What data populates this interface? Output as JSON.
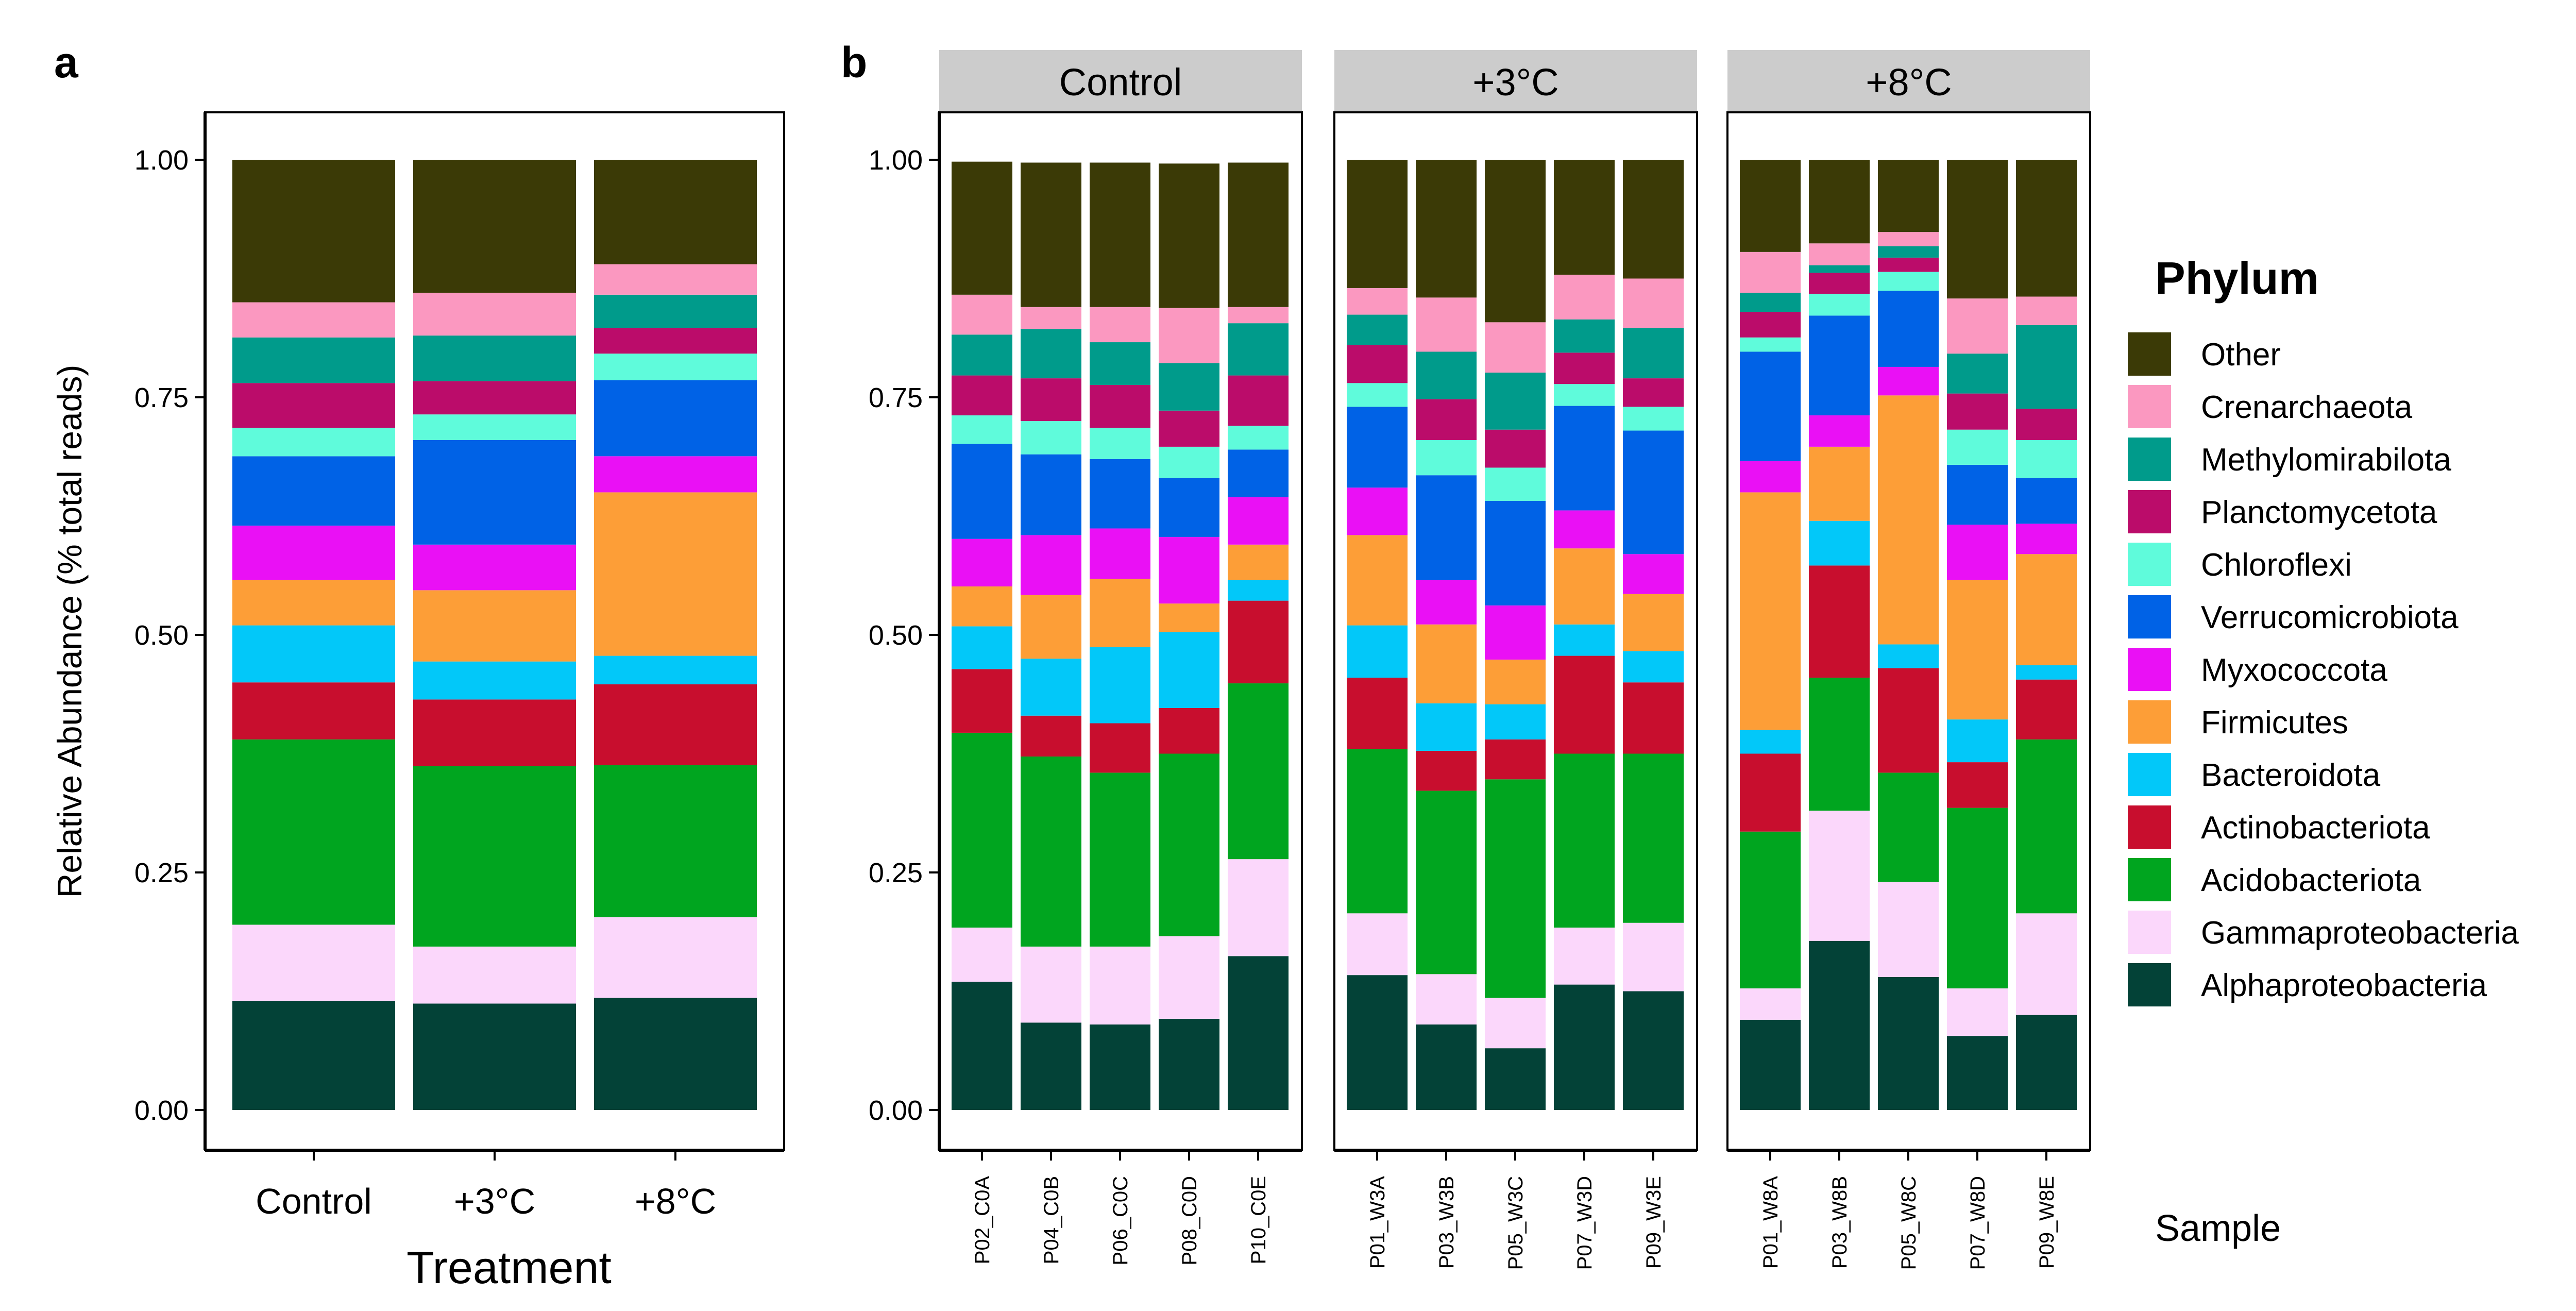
{
  "panels": {
    "a": "a",
    "b": "b"
  },
  "colors": {
    "Other": "#3b3a06",
    "Crenarchaeota": "#fb98c0",
    "Methylomirabilota": "#009b8b",
    "Planctomycetota": "#bb0c6a",
    "Chloroflexi": "#5ffbdb",
    "Verrucomicrobiota": "#0062e6",
    "Myxococcota": "#ea10f5",
    "Firmicutes": "#fd9e37",
    "Bacteroidota": "#02c8f9",
    "Actinobacteriota": "#c80e2e",
    "Acidobacteriota": "#00a51f",
    "Gammaproteobacteria": "#fbd7fb",
    "Alphaproteobacteria": "#034237"
  },
  "chart_data": [
    {
      "type": "bar",
      "stacked": true,
      "panel": "a",
      "xlabel": "Treatment",
      "ylabel": "Relative Abundance (% total reads)",
      "ylim": [
        0,
        1
      ],
      "yticks": [
        "0.00",
        "0.25",
        "0.50",
        "0.75",
        "1.00"
      ],
      "categories": [
        "Control",
        "+3°C",
        "+8°C"
      ],
      "series": [
        {
          "name": "Alphaproteobacteria",
          "values": [
            0.115,
            0.112,
            0.118
          ]
        },
        {
          "name": "Gammaproteobacteria",
          "values": [
            0.08,
            0.06,
            0.085
          ]
        },
        {
          "name": "Acidobacteriota",
          "values": [
            0.195,
            0.19,
            0.16
          ]
        },
        {
          "name": "Actinobacteriota",
          "values": [
            0.06,
            0.07,
            0.085
          ]
        },
        {
          "name": "Bacteroidota",
          "values": [
            0.06,
            0.04,
            0.03
          ]
        },
        {
          "name": "Firmicutes",
          "values": [
            0.048,
            0.075,
            0.172
          ]
        },
        {
          "name": "Myxococcota",
          "values": [
            0.057,
            0.048,
            0.038
          ]
        },
        {
          "name": "Verrucomicrobiota",
          "values": [
            0.073,
            0.11,
            0.08
          ]
        },
        {
          "name": "Chloroflexi",
          "values": [
            0.03,
            0.027,
            0.028
          ]
        },
        {
          "name": "Planctomycetota",
          "values": [
            0.047,
            0.035,
            0.027
          ]
        },
        {
          "name": "Methylomirabilota",
          "values": [
            0.048,
            0.048,
            0.035
          ]
        },
        {
          "name": "Crenarchaeota",
          "values": [
            0.037,
            0.045,
            0.032
          ]
        },
        {
          "name": "Other",
          "values": [
            0.15,
            0.14,
            0.11
          ]
        }
      ]
    },
    {
      "type": "bar",
      "stacked": true,
      "panel": "b",
      "xlabel": "Sample",
      "ylabel": "",
      "ylim": [
        0,
        1
      ],
      "yticks": [
        "0.00",
        "0.25",
        "0.50",
        "0.75",
        "1.00"
      ],
      "legend_title": "Phylum",
      "legend_position": "right",
      "legend_order": [
        "Other",
        "Crenarchaeota",
        "Methylomirabilota",
        "Planctomycetota",
        "Chloroflexi",
        "Verrucomicrobiota",
        "Myxococcota",
        "Firmicutes",
        "Bacteroidota",
        "Actinobacteriota",
        "Acidobacteriota",
        "Gammaproteobacteria",
        "Alphaproteobacteria"
      ],
      "facets": [
        {
          "label": "Control",
          "categories": [
            "P02_C0A",
            "P04_C0B",
            "P06_C0C",
            "P08_C0D",
            "P10_C0E"
          ],
          "series": [
            {
              "name": "Alphaproteobacteria",
              "values": [
                0.135,
                0.092,
                0.09,
                0.096,
                0.162
              ]
            },
            {
              "name": "Gammaproteobacteria",
              "values": [
                0.057,
                0.08,
                0.082,
                0.087,
                0.102
              ]
            },
            {
              "name": "Acidobacteriota",
              "values": [
                0.205,
                0.2,
                0.183,
                0.192,
                0.185
              ]
            },
            {
              "name": "Actinobacteriota",
              "values": [
                0.067,
                0.043,
                0.052,
                0.048,
                0.087
              ]
            },
            {
              "name": "Bacteroidota",
              "values": [
                0.045,
                0.06,
                0.08,
                0.08,
                0.022
              ]
            },
            {
              "name": "Firmicutes",
              "values": [
                0.042,
                0.067,
                0.072,
                0.03,
                0.037
              ]
            },
            {
              "name": "Myxococcota",
              "values": [
                0.05,
                0.063,
                0.053,
                0.07,
                0.05
              ]
            },
            {
              "name": "Verrucomicrobiota",
              "values": [
                0.1,
                0.085,
                0.073,
                0.062,
                0.05
              ]
            },
            {
              "name": "Chloroflexi",
              "values": [
                0.03,
                0.035,
                0.033,
                0.033,
                0.025
              ]
            },
            {
              "name": "Planctomycetota",
              "values": [
                0.042,
                0.045,
                0.045,
                0.038,
                0.053
              ]
            },
            {
              "name": "Methylomirabilota",
              "values": [
                0.043,
                0.052,
                0.045,
                0.05,
                0.055
              ]
            },
            {
              "name": "Crenarchaeota",
              "values": [
                0.042,
                0.023,
                0.037,
                0.058,
                0.017
              ]
            },
            {
              "name": "Other",
              "values": [
                0.14,
                0.152,
                0.152,
                0.152,
                0.152
              ]
            }
          ]
        },
        {
          "label": "+3°C",
          "categories": [
            "P01_W3A",
            "P03_W3B",
            "P05_W3C",
            "P07_W3D",
            "P09_W3E"
          ],
          "series": [
            {
              "name": "Alphaproteobacteria",
              "values": [
                0.142,
                0.09,
                0.065,
                0.132,
                0.125
              ]
            },
            {
              "name": "Gammaproteobacteria",
              "values": [
                0.065,
                0.053,
                0.053,
                0.06,
                0.072
              ]
            },
            {
              "name": "Acidobacteriota",
              "values": [
                0.173,
                0.193,
                0.23,
                0.183,
                0.178
              ]
            },
            {
              "name": "Actinobacteriota",
              "values": [
                0.075,
                0.042,
                0.042,
                0.103,
                0.075
              ]
            },
            {
              "name": "Bacteroidota",
              "values": [
                0.055,
                0.05,
                0.037,
                0.033,
                0.033
              ]
            },
            {
              "name": "Firmicutes",
              "values": [
                0.095,
                0.083,
                0.047,
                0.08,
                0.06
              ]
            },
            {
              "name": "Myxococcota",
              "values": [
                0.05,
                0.047,
                0.057,
                0.04,
                0.042
              ]
            },
            {
              "name": "Verrucomicrobiota",
              "values": [
                0.085,
                0.11,
                0.11,
                0.11,
                0.13
              ]
            },
            {
              "name": "Chloroflexi",
              "values": [
                0.025,
                0.037,
                0.035,
                0.023,
                0.025
              ]
            },
            {
              "name": "Planctomycetota",
              "values": [
                0.04,
                0.043,
                0.04,
                0.033,
                0.03
              ]
            },
            {
              "name": "Methylomirabilota",
              "values": [
                0.032,
                0.05,
                0.06,
                0.035,
                0.053
              ]
            },
            {
              "name": "Crenarchaeota",
              "values": [
                0.028,
                0.057,
                0.053,
                0.047,
                0.052
              ]
            },
            {
              "name": "Other",
              "values": [
                0.135,
                0.145,
                0.171,
                0.121,
                0.125
              ]
            }
          ]
        },
        {
          "label": "+8°C",
          "categories": [
            "P01_W8A",
            "P03_W8B",
            "P05_W8C",
            "P07_W8D",
            "P09_W8E"
          ],
          "series": [
            {
              "name": "Alphaproteobacteria",
              "values": [
                0.095,
                0.178,
                0.14,
                0.078,
                0.1
              ]
            },
            {
              "name": "Gammaproteobacteria",
              "values": [
                0.033,
                0.137,
                0.1,
                0.05,
                0.107
              ]
            },
            {
              "name": "Acidobacteriota",
              "values": [
                0.165,
                0.14,
                0.115,
                0.19,
                0.183
              ]
            },
            {
              "name": "Actinobacteriota",
              "values": [
                0.082,
                0.118,
                0.11,
                0.048,
                0.063
              ]
            },
            {
              "name": "Bacteroidota",
              "values": [
                0.025,
                0.047,
                0.025,
                0.045,
                0.015
              ]
            },
            {
              "name": "Firmicutes",
              "values": [
                0.25,
                0.078,
                0.262,
                0.147,
                0.117
              ]
            },
            {
              "name": "Myxococcota",
              "values": [
                0.033,
                0.033,
                0.03,
                0.058,
                0.032
              ]
            },
            {
              "name": "Verrucomicrobiota",
              "values": [
                0.115,
                0.105,
                0.08,
                0.063,
                0.048
              ]
            },
            {
              "name": "Chloroflexi",
              "values": [
                0.015,
                0.023,
                0.02,
                0.037,
                0.04
              ]
            },
            {
              "name": "Planctomycetota",
              "values": [
                0.027,
                0.022,
                0.015,
                0.038,
                0.033
              ]
            },
            {
              "name": "Methylomirabilota",
              "values": [
                0.02,
                0.008,
                0.012,
                0.042,
                0.088
              ]
            },
            {
              "name": "Crenarchaeota",
              "values": [
                0.043,
                0.023,
                0.015,
                0.058,
                0.03
              ]
            },
            {
              "name": "Other",
              "values": [
                0.097,
                0.088,
                0.076,
                0.146,
                0.144
              ]
            }
          ]
        }
      ]
    }
  ]
}
